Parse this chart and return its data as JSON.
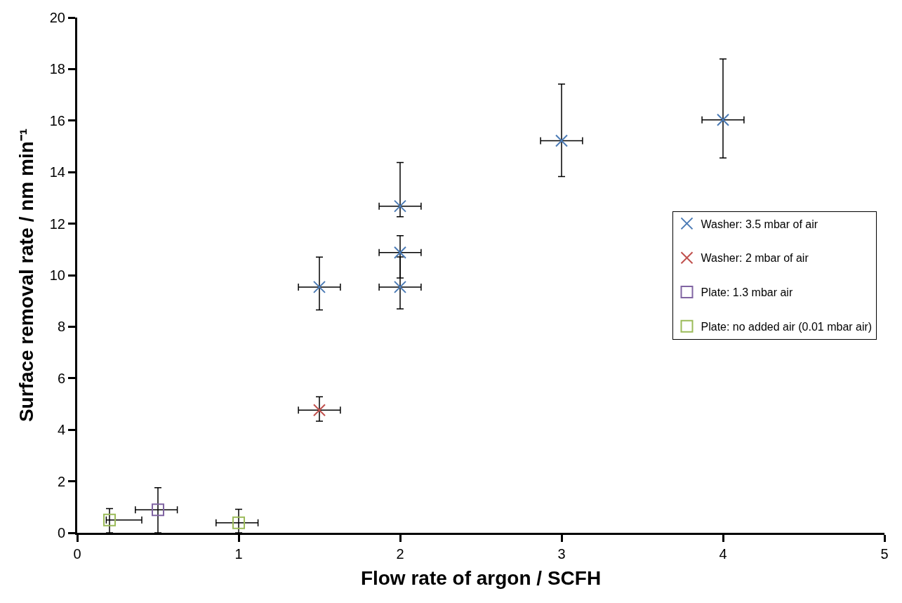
{
  "chart_data": {
    "type": "scatter",
    "xlabel": "Flow rate of argon / SCFH",
    "ylabel": "Surface removal rate / nm min⁻¹",
    "xlim": [
      0,
      5
    ],
    "xticks": [
      0,
      1,
      2,
      3,
      4,
      5
    ],
    "ylim": [
      0,
      20
    ],
    "yticks": [
      0,
      2,
      4,
      6,
      8,
      10,
      12,
      14,
      16,
      18,
      20
    ],
    "legend": "right",
    "series": [
      {
        "name": "Washer: 3.5 mbar of air",
        "color": "#4a7ab5",
        "marker": "cross",
        "x": [
          1.5,
          2,
          2,
          2,
          3,
          4
        ],
        "values": [
          9.54,
          12.68,
          10.88,
          9.54,
          15.22,
          16.03
        ],
        "errors": [
          [
            8.65,
            10.7
          ],
          [
            12.27,
            14.37
          ],
          [
            9.89,
            11.53
          ],
          [
            8.69,
            10.71
          ],
          [
            13.83,
            17.42
          ],
          [
            14.55,
            18.39
          ]
        ],
        "xerrors": [
          [
            1.37,
            1.63
          ],
          [
            1.87,
            2.13
          ],
          [
            1.87,
            2.13
          ],
          [
            1.87,
            2.13
          ],
          [
            2.87,
            3.13
          ],
          [
            3.87,
            4.13
          ]
        ]
      },
      {
        "name": "Washer: 2 mbar of air",
        "color": "#c0504d",
        "marker": "cross",
        "x": [
          1.5
        ],
        "values": [
          4.76
        ],
        "errors": [
          [
            4.33,
            5.28
          ]
        ],
        "xerrors": [
          [
            1.37,
            1.63
          ]
        ]
      },
      {
        "name": "Plate: 1.3 mbar air",
        "color": "#8064a2",
        "marker": "square",
        "x": [
          0.5
        ],
        "values": [
          0.89
        ],
        "errors": [
          [
            0,
            1.75
          ]
        ],
        "xerrors": [
          [
            0.36,
            0.62
          ]
        ]
      },
      {
        "name": "Plate: no added air (0.01 mbar air)",
        "color": "#9bbb59",
        "marker": "square",
        "x": [
          0.2,
          1.0
        ],
        "values": [
          0.5,
          0.39
        ],
        "errors": [
          [
            0,
            0.94
          ],
          [
            0,
            0.91
          ]
        ],
        "xerrors": [
          [
            0.18,
            0.4
          ],
          [
            0.86,
            1.12
          ]
        ]
      }
    ]
  }
}
